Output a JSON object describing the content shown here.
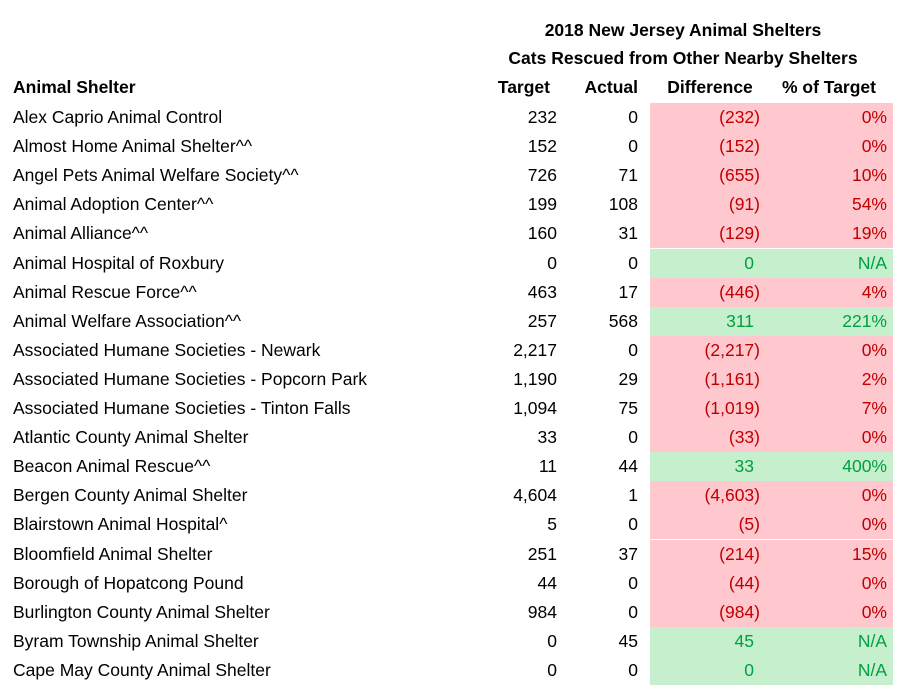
{
  "title": [
    "2018 New Jersey Animal Shelters",
    "Cats Rescued from Other Nearby Shelters"
  ],
  "headers": [
    "Animal Shelter",
    "Target",
    "Actual",
    "Difference",
    "% of Target"
  ],
  "rows": [
    {
      "shelter": "Alex Caprio Animal Control",
      "target": "232",
      "actual": "0",
      "difference": "(232)",
      "percent": "0%",
      "fill": "#ffc7ce",
      "text_color": "#c00000"
    },
    {
      "shelter": "Almost Home Animal Shelter^^",
      "target": "152",
      "actual": "0",
      "difference": "(152)",
      "percent": "0%",
      "fill": "#ffc7ce",
      "text_color": "#c00000"
    },
    {
      "shelter": "Angel Pets Animal Welfare Society^^",
      "target": "726",
      "actual": "71",
      "difference": "(655)",
      "percent": "10%",
      "fill": "#ffc7ce",
      "text_color": "#c00000"
    },
    {
      "shelter": "Animal Adoption Center^^",
      "target": "199",
      "actual": "108",
      "difference": "(91)",
      "percent": "54%",
      "fill": "#ffc7ce",
      "text_color": "#c00000"
    },
    {
      "shelter": "Animal Alliance^^",
      "target": "160",
      "actual": "31",
      "difference": "(129)",
      "percent": "19%",
      "fill": "#ffc7ce",
      "text_color": "#c00000"
    },
    {
      "shelter": "Animal Hospital of Roxbury",
      "target": "0",
      "actual": "0",
      "difference": "0",
      "percent": "N/A",
      "fill": "#c6efce",
      "text_color": "#00a040"
    },
    {
      "shelter": "Animal Rescue Force^^",
      "target": "463",
      "actual": "17",
      "difference": "(446)",
      "percent": "4%",
      "fill": "#ffc7ce",
      "text_color": "#c00000"
    },
    {
      "shelter": "Animal Welfare Association^^",
      "target": "257",
      "actual": "568",
      "difference": "311",
      "percent": "221%",
      "fill": "#c6efce",
      "text_color": "#00a040"
    },
    {
      "shelter": "Associated Humane Societies - Newark",
      "target": "2,217",
      "actual": "0",
      "difference": "(2,217)",
      "percent": "0%",
      "fill": "#ffc7ce",
      "text_color": "#c00000"
    },
    {
      "shelter": "Associated Humane Societies - Popcorn Park",
      "target": "1,190",
      "actual": "29",
      "difference": "(1,161)",
      "percent": "2%",
      "fill": "#ffc7ce",
      "text_color": "#c00000"
    },
    {
      "shelter": "Associated Humane Societies - Tinton Falls",
      "target": "1,094",
      "actual": "75",
      "difference": "(1,019)",
      "percent": "7%",
      "fill": "#ffc7ce",
      "text_color": "#c00000"
    },
    {
      "shelter": "Atlantic County Animal Shelter",
      "target": "33",
      "actual": "0",
      "difference": "(33)",
      "percent": "0%",
      "fill": "#ffc7ce",
      "text_color": "#c00000"
    },
    {
      "shelter": "Beacon Animal Rescue^^",
      "target": "11",
      "actual": "44",
      "difference": "33",
      "percent": "400%",
      "fill": "#c6efce",
      "text_color": "#00a040"
    },
    {
      "shelter": "Bergen County Animal Shelter",
      "target": "4,604",
      "actual": "1",
      "difference": "(4,603)",
      "percent": "0%",
      "fill": "#ffc7ce",
      "text_color": "#c00000"
    },
    {
      "shelter": "Blairstown Animal Hospital^",
      "target": "5",
      "actual": "0",
      "difference": "(5)",
      "percent": "0%",
      "fill": "#ffc7ce",
      "text_color": "#c00000"
    },
    {
      "shelter": "Bloomfield Animal Shelter",
      "target": "251",
      "actual": "37",
      "difference": "(214)",
      "percent": "15%",
      "fill": "#ffc7ce",
      "text_color": "#c00000"
    },
    {
      "shelter": "Borough of Hopatcong Pound",
      "target": "44",
      "actual": "0",
      "difference": "(44)",
      "percent": "0%",
      "fill": "#ffc7ce",
      "text_color": "#c00000"
    },
    {
      "shelter": "Burlington County Animal Shelter",
      "target": "984",
      "actual": "0",
      "difference": "(984)",
      "percent": "0%",
      "fill": "#ffc7ce",
      "text_color": "#c00000"
    },
    {
      "shelter": "Byram Township Animal Shelter",
      "target": "0",
      "actual": "45",
      "difference": "45",
      "percent": "N/A",
      "fill": "#c6efce",
      "text_color": "#00a040"
    },
    {
      "shelter": "Cape May County Animal Shelter",
      "target": "0",
      "actual": "0",
      "difference": "0",
      "percent": "N/A",
      "fill": "#c6efce",
      "text_color": "#00a040"
    }
  ]
}
